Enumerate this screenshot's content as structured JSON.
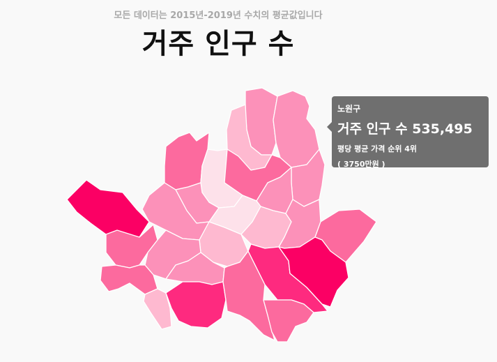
{
  "header": {
    "subtitle": "모든 데이터는 2015년-2019년 수치의 평균값입니다",
    "title": "거주 인구 수"
  },
  "tooltip": {
    "district": "노원구",
    "population_text": "거주 인구 수 535,495",
    "rank_text": "평당 평균 가격 순위 4위",
    "price_text": "( 3750만원 )"
  },
  "map": {
    "colors": {
      "strongest": "#fb0064",
      "strong": "#fe2a7f",
      "medium": "#fc6a9e",
      "light": "#fc91b9",
      "lighter": "#feb9d0",
      "lightest": "#fde1ea"
    },
    "selected_district": "노원구"
  }
}
